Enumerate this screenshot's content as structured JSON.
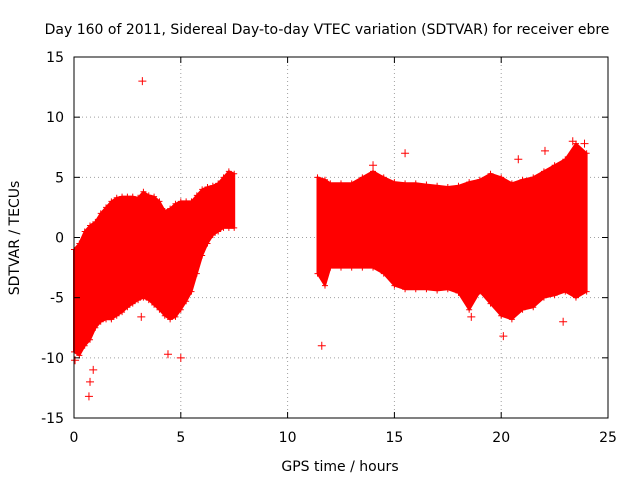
{
  "chart_data": {
    "type": "scatter",
    "title": "Day 160 of 2011, Sidereal Day-to-day VTEC variation (SDTVAR) for receiver ebre",
    "xlabel": "GPS time / hours",
    "ylabel": "SDTVAR / TECUs",
    "xlim": [
      0,
      25
    ],
    "ylim": [
      -15,
      15
    ],
    "x_ticks": [
      0,
      5,
      10,
      15,
      20,
      25
    ],
    "y_ticks": [
      -15,
      -10,
      -5,
      0,
      5,
      10,
      15
    ],
    "x_tick_labels": [
      "0",
      "5",
      "10",
      "15",
      "20",
      "25"
    ],
    "y_tick_labels": [
      "-15",
      "-10",
      "-5",
      "0",
      "5",
      "10",
      "15"
    ],
    "grid": true,
    "marker": "+",
    "series": [
      {
        "name": "SDTVAR",
        "color": "#ff0000",
        "segments": [
          {
            "x": [
              0.0,
              0.25,
              0.5,
              0.75,
              1.0,
              1.25,
              1.5,
              1.75,
              2.0,
              2.25,
              2.5,
              2.75,
              3.0,
              3.25,
              3.5,
              3.75,
              4.0,
              4.25,
              4.5,
              4.75,
              5.0,
              5.25,
              5.5,
              5.75,
              6.0,
              6.25,
              6.5,
              6.75,
              7.0,
              7.25,
              7.5
            ],
            "upper": [
              -1.0,
              -0.5,
              0.5,
              1.0,
              1.3,
              2.0,
              2.5,
              3.0,
              3.3,
              3.4,
              3.4,
              3.4,
              3.3,
              3.8,
              3.5,
              3.4,
              3.0,
              2.2,
              2.4,
              2.8,
              3.0,
              3.0,
              3.0,
              3.5,
              4.0,
              4.2,
              4.3,
              4.5,
              5.0,
              5.5,
              5.3
            ],
            "lower": [
              -9.5,
              -9.8,
              -9.0,
              -8.5,
              -7.5,
              -7.0,
              -6.8,
              -6.8,
              -6.5,
              -6.2,
              -5.8,
              -5.5,
              -5.2,
              -5.0,
              -5.2,
              -5.6,
              -6.0,
              -6.5,
              -6.8,
              -6.6,
              -6.0,
              -5.3,
              -4.5,
              -3.0,
              -1.5,
              -0.5,
              0.2,
              0.5,
              0.8,
              0.8,
              0.8
            ]
          },
          {
            "x": [
              11.4,
              11.75,
              12.0,
              12.5,
              13.0,
              13.5,
              14.0,
              14.5,
              15.0,
              15.5,
              16.0,
              16.5,
              17.0,
              17.5,
              18.0,
              18.5,
              19.0,
              19.5,
              20.0,
              20.5,
              21.0,
              21.5,
              22.0,
              22.5,
              23.0,
              23.5,
              24.0
            ],
            "upper": [
              5.0,
              4.8,
              4.5,
              4.5,
              4.5,
              5.0,
              5.5,
              5.0,
              4.6,
              4.5,
              4.5,
              4.4,
              4.3,
              4.2,
              4.3,
              4.6,
              4.8,
              5.3,
              5.0,
              4.5,
              4.8,
              5.0,
              5.5,
              6.0,
              6.5,
              7.8,
              7.0
            ],
            "lower": [
              -3.0,
              -4.0,
              -2.5,
              -2.5,
              -2.5,
              -2.5,
              -2.5,
              -3.0,
              -4.0,
              -4.3,
              -4.3,
              -4.3,
              -4.4,
              -4.3,
              -4.6,
              -6.0,
              -4.5,
              -5.5,
              -6.5,
              -6.8,
              -6.0,
              -5.8,
              -5.0,
              -4.8,
              -4.5,
              -5.0,
              -4.5
            ]
          }
        ],
        "outliers": [
          {
            "x": 3.2,
            "y": 13.0
          },
          {
            "x": 3.15,
            "y": -6.6
          },
          {
            "x": 4.4,
            "y": -9.7
          },
          {
            "x": 5.0,
            "y": -10.0
          },
          {
            "x": 0.7,
            "y": -13.2
          },
          {
            "x": 0.75,
            "y": -12.0
          },
          {
            "x": 0.9,
            "y": -11.0
          },
          {
            "x": 0.05,
            "y": -10.2
          },
          {
            "x": 15.5,
            "y": 7.0
          },
          {
            "x": 14.0,
            "y": 6.0
          },
          {
            "x": 20.1,
            "y": -8.2
          },
          {
            "x": 20.8,
            "y": 6.5
          },
          {
            "x": 22.9,
            "y": -7.0
          },
          {
            "x": 11.6,
            "y": -9.0
          },
          {
            "x": 18.6,
            "y": -6.6
          },
          {
            "x": 23.35,
            "y": 8.0
          },
          {
            "x": 23.9,
            "y": 7.8
          },
          {
            "x": 22.05,
            "y": 7.2
          }
        ]
      }
    ]
  }
}
